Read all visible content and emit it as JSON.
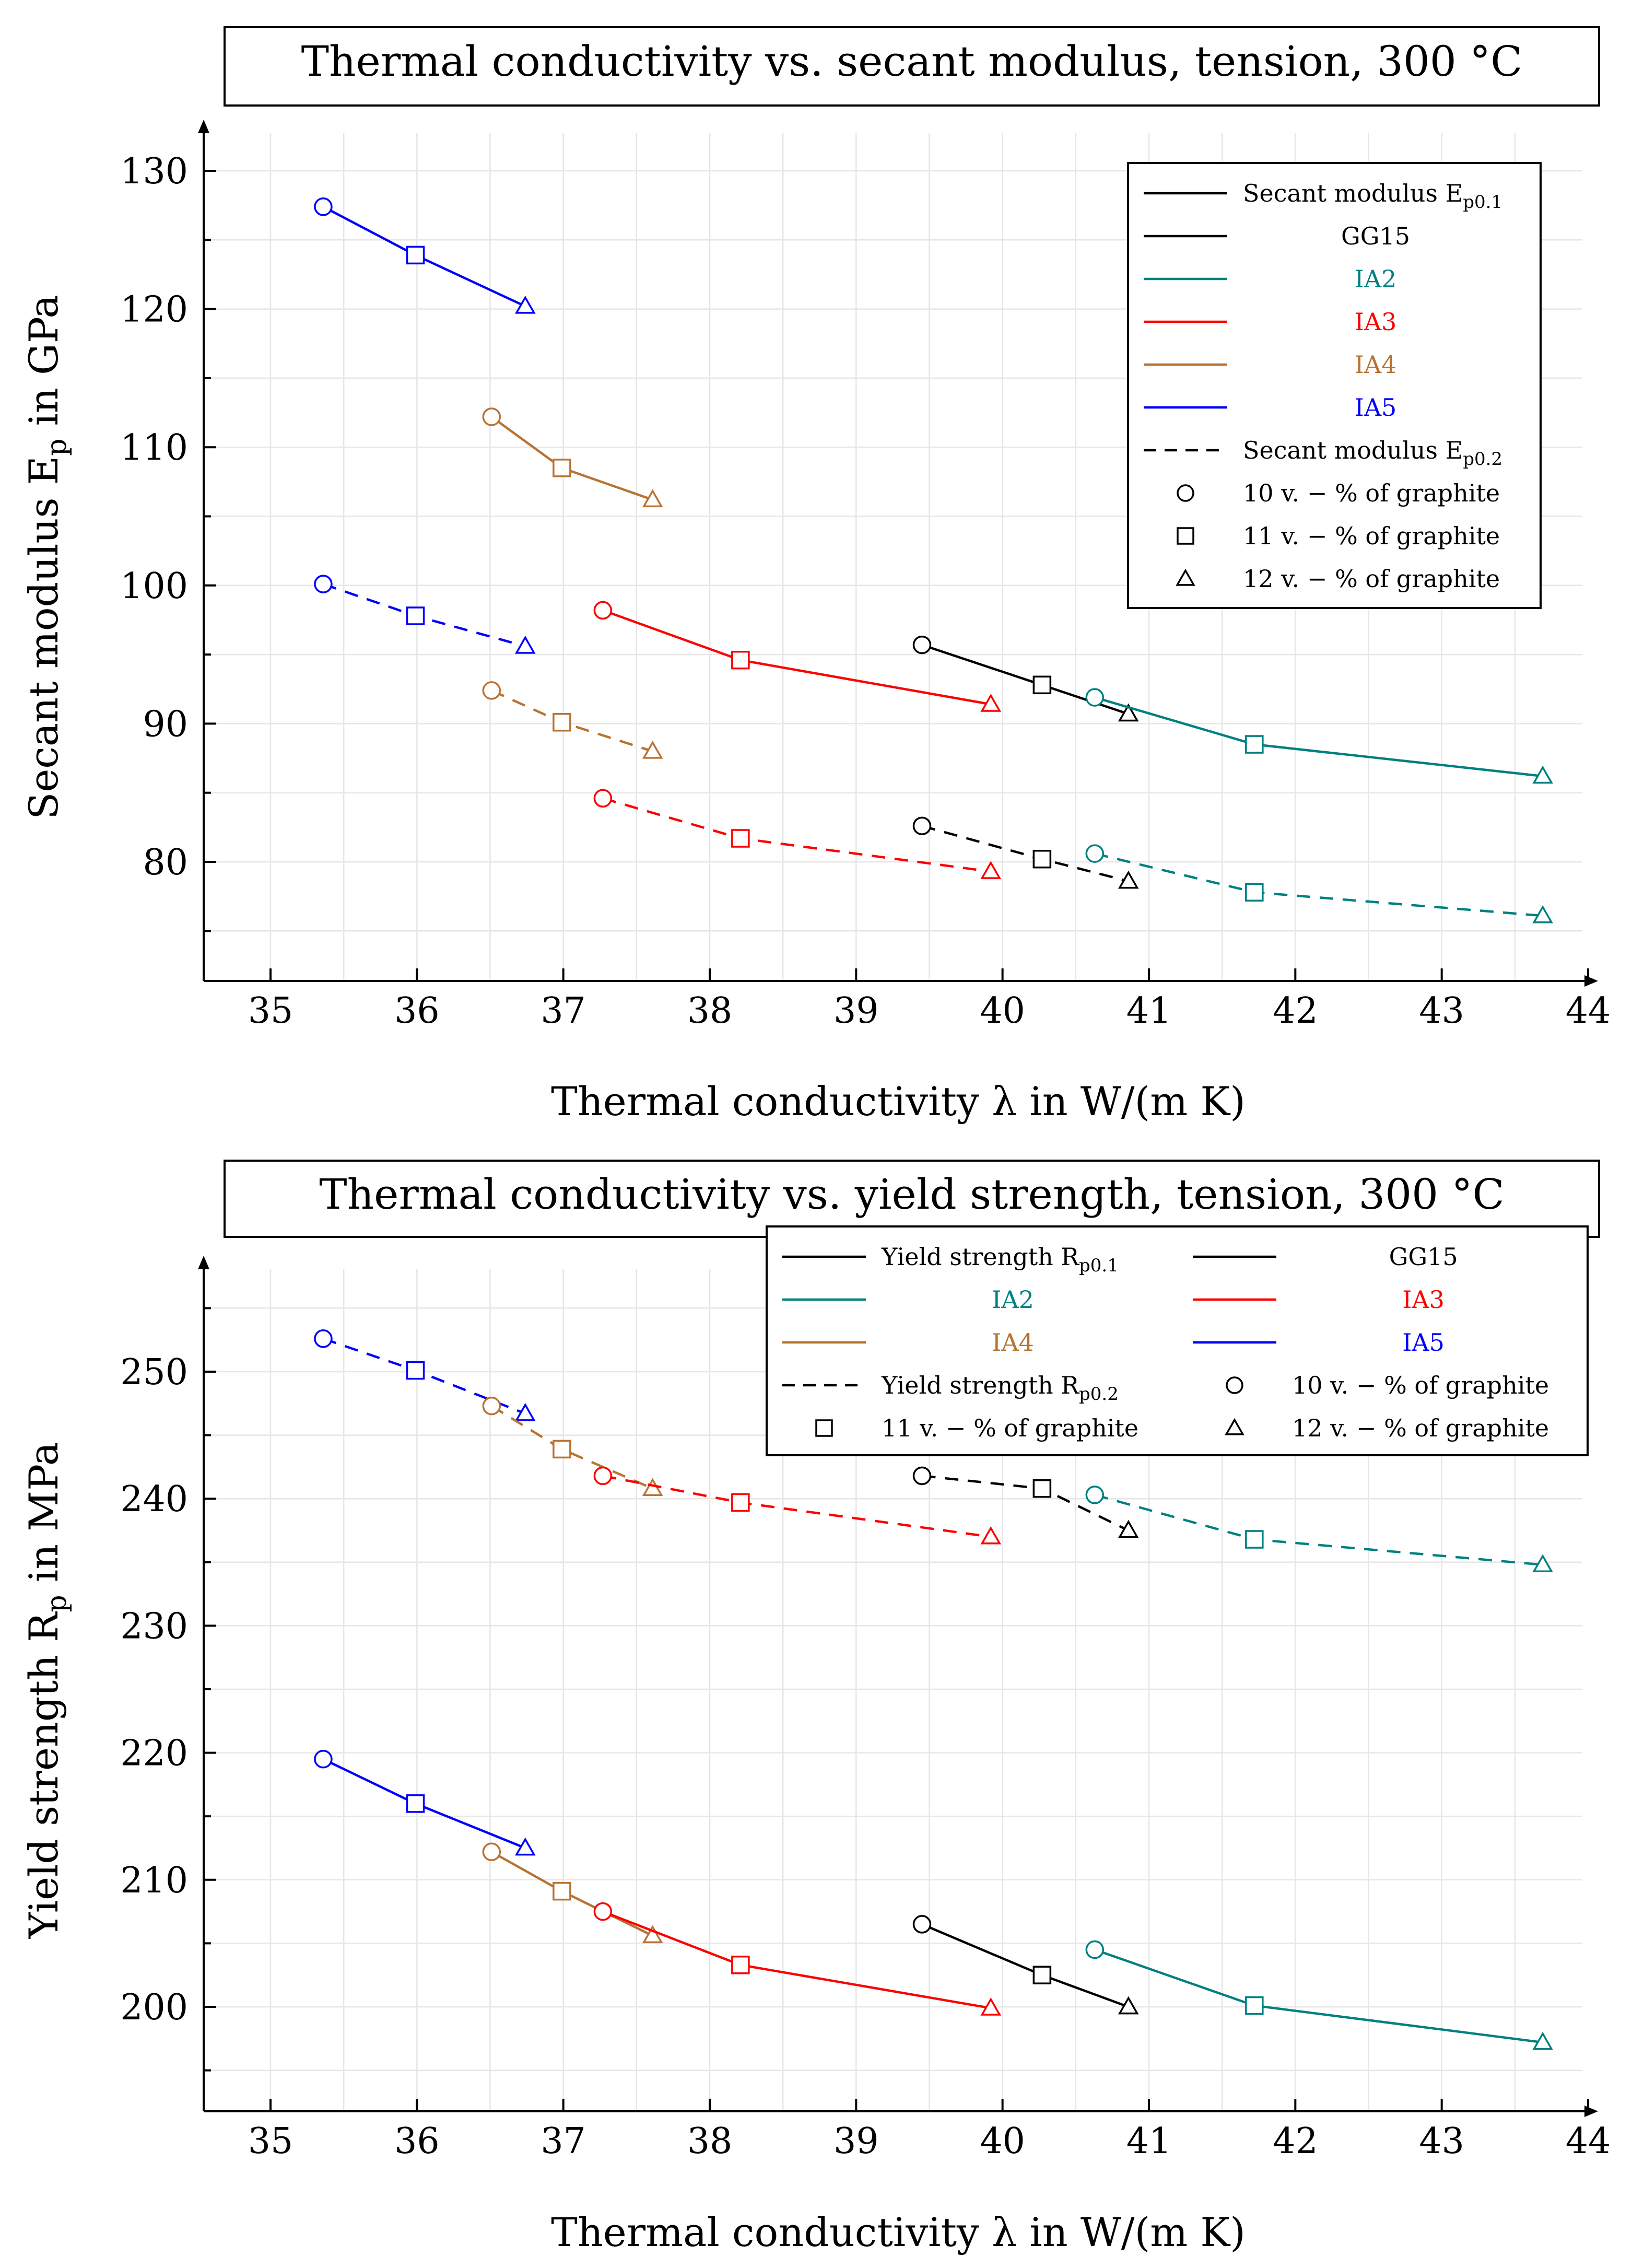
{
  "colors": {
    "GG15": "#000000",
    "IA2": "#008080",
    "IA3": "#ff0000",
    "IA4": "#b87333",
    "IA5": "#0000ff",
    "grid": "#e6e6e6",
    "axis": "#000000"
  },
  "markers": [
    "circle",
    "square",
    "triangle"
  ],
  "chart_data": [
    {
      "type": "line",
      "title": "Thermal conductivity vs. secant modulus, tension, 300 °C",
      "xlabel": "Thermal conductivity λ in W/(m K)",
      "ylabel": "Secant modulus E",
      "ylabel_sub": "p",
      "ylabel_suffix": " in GPa",
      "xlim": [
        34.5,
        44.5
      ],
      "ylim": [
        71,
        131.5
      ],
      "xticks": [
        35,
        36,
        37,
        38,
        39,
        40,
        41,
        42,
        43,
        44
      ],
      "yticks": [
        80,
        90,
        100,
        110,
        120,
        130
      ],
      "legend_position": "top-right",
      "legend_columns": 1,
      "legend": [
        {
          "kind": "line",
          "style": "solid",
          "color": "GG15",
          "label": "Secant modulus E",
          "sub": "p0.1"
        },
        {
          "kind": "line",
          "style": "solid",
          "color": "GG15",
          "label": "GG15",
          "center": true
        },
        {
          "kind": "line",
          "style": "solid",
          "color": "IA2",
          "label": "IA2",
          "center": true
        },
        {
          "kind": "line",
          "style": "solid",
          "color": "IA3",
          "label": "IA3",
          "center": true
        },
        {
          "kind": "line",
          "style": "solid",
          "color": "IA4",
          "label": "IA4",
          "center": true
        },
        {
          "kind": "line",
          "style": "solid",
          "color": "IA5",
          "label": "IA5",
          "center": true
        },
        {
          "kind": "line",
          "style": "dashed",
          "color": "GG15",
          "label": "Secant modulus E",
          "sub": "p0.2"
        },
        {
          "kind": "marker",
          "marker": "circle",
          "label": "10 v. − % of graphite"
        },
        {
          "kind": "marker",
          "marker": "square",
          "label": "11 v. − % of graphite"
        },
        {
          "kind": "marker",
          "marker": "triangle",
          "label": "12 v. − % of graphite"
        }
      ],
      "series": [
        {
          "name": "IA5 Ep0.1",
          "material": "IA5",
          "style": "solid",
          "x": [
            35.36,
            35.99,
            36.74
          ],
          "y": [
            127.4,
            123.9,
            120.2
          ]
        },
        {
          "name": "IA4 Ep0.1",
          "material": "IA4",
          "style": "solid",
          "x": [
            36.51,
            36.99,
            37.61
          ],
          "y": [
            112.2,
            108.5,
            106.2
          ]
        },
        {
          "name": "IA3 Ep0.1",
          "material": "IA3",
          "style": "solid",
          "x": [
            37.27,
            38.21,
            39.92
          ],
          "y": [
            98.2,
            94.6,
            91.4
          ]
        },
        {
          "name": "GG15 Ep0.1",
          "material": "GG15",
          "style": "solid",
          "x": [
            39.45,
            40.27,
            40.86
          ],
          "y": [
            95.7,
            92.8,
            90.7
          ]
        },
        {
          "name": "IA2 Ep0.1",
          "material": "IA2",
          "style": "solid",
          "x": [
            40.63,
            41.72,
            43.69
          ],
          "y": [
            91.9,
            88.5,
            86.2
          ]
        },
        {
          "name": "IA5 Ep0.2",
          "material": "IA5",
          "style": "dashed",
          "x": [
            35.36,
            35.99,
            36.74
          ],
          "y": [
            100.1,
            97.8,
            95.6
          ]
        },
        {
          "name": "IA4 Ep0.2",
          "material": "IA4",
          "style": "dashed",
          "x": [
            36.51,
            36.99,
            37.61
          ],
          "y": [
            92.4,
            90.1,
            88.0
          ]
        },
        {
          "name": "IA3 Ep0.2",
          "material": "IA3",
          "style": "dashed",
          "x": [
            37.27,
            38.21,
            39.92
          ],
          "y": [
            84.6,
            81.7,
            79.3
          ]
        },
        {
          "name": "GG15 Ep0.2",
          "material": "GG15",
          "style": "dashed",
          "x": [
            39.45,
            40.27,
            40.86
          ],
          "y": [
            82.6,
            80.2,
            78.6
          ]
        },
        {
          "name": "IA2 Ep0.2",
          "material": "IA2",
          "style": "dashed",
          "x": [
            40.63,
            41.72,
            43.69
          ],
          "y": [
            80.6,
            77.8,
            76.1
          ]
        }
      ]
    },
    {
      "type": "line",
      "title": "Thermal conductivity vs. yield strength, tension, 300 °C",
      "xlabel": "Thermal conductivity λ in W/(m K)",
      "ylabel": "Yield strength R",
      "ylabel_sub": "p",
      "ylabel_suffix": " in MPa",
      "xlim": [
        34.5,
        44.5
      ],
      "ylim": [
        191,
        258
      ],
      "xticks": [
        35,
        36,
        37,
        38,
        39,
        40,
        41,
        42,
        43,
        44
      ],
      "yticks": [
        200,
        210,
        220,
        230,
        240,
        250
      ],
      "legend_position": "top-right",
      "legend_columns": 2,
      "legend": [
        {
          "kind": "line",
          "style": "solid",
          "color": "GG15",
          "label": "Yield strength R",
          "sub": "p0.1"
        },
        {
          "kind": "line",
          "style": "solid",
          "color": "GG15",
          "label": "GG15",
          "center": true
        },
        {
          "kind": "line",
          "style": "solid",
          "color": "IA2",
          "label": "IA2",
          "center": true
        },
        {
          "kind": "line",
          "style": "solid",
          "color": "IA3",
          "label": "IA3",
          "center": true
        },
        {
          "kind": "line",
          "style": "solid",
          "color": "IA4",
          "label": "IA4",
          "center": true
        },
        {
          "kind": "line",
          "style": "solid",
          "color": "IA5",
          "label": "IA5",
          "center": true
        },
        {
          "kind": "line",
          "style": "dashed",
          "color": "GG15",
          "label": "Yield strength R",
          "sub": "p0.2"
        },
        {
          "kind": "marker",
          "marker": "circle",
          "label": "10 v. − % of graphite"
        },
        {
          "kind": "marker",
          "marker": "square",
          "label": "11 v. − % of graphite"
        },
        {
          "kind": "marker",
          "marker": "triangle",
          "label": "12 v. − % of graphite"
        }
      ],
      "series": [
        {
          "name": "IA5 Rp0.1",
          "material": "IA5",
          "style": "solid",
          "x": [
            35.36,
            35.99,
            36.74
          ],
          "y": [
            219.5,
            216.0,
            212.5
          ]
        },
        {
          "name": "IA4 Rp0.1",
          "material": "IA4",
          "style": "solid",
          "x": [
            36.51,
            36.99,
            37.61
          ],
          "y": [
            212.2,
            209.1,
            205.6
          ]
        },
        {
          "name": "IA3 Rp0.1",
          "material": "IA3",
          "style": "solid",
          "x": [
            37.27,
            38.21,
            39.92
          ],
          "y": [
            207.5,
            203.3,
            199.9
          ]
        },
        {
          "name": "GG15 Rp0.1",
          "material": "GG15",
          "style": "solid",
          "x": [
            39.45,
            40.27,
            40.86
          ],
          "y": [
            206.5,
            202.5,
            200.0
          ]
        },
        {
          "name": "IA2 Rp0.1",
          "material": "IA2",
          "style": "solid",
          "x": [
            40.63,
            41.72,
            43.69
          ],
          "y": [
            204.5,
            200.1,
            197.2
          ]
        },
        {
          "name": "IA5 Rp0.2",
          "material": "IA5",
          "style": "dashed",
          "x": [
            35.36,
            35.99,
            36.74
          ],
          "y": [
            252.6,
            250.1,
            246.7
          ]
        },
        {
          "name": "IA4 Rp0.2",
          "material": "IA4",
          "style": "dashed",
          "x": [
            36.51,
            36.99,
            37.61
          ],
          "y": [
            247.3,
            243.9,
            240.8
          ]
        },
        {
          "name": "IA3 Rp0.2",
          "material": "IA3",
          "style": "dashed",
          "x": [
            37.27,
            38.21,
            39.92
          ],
          "y": [
            241.8,
            239.7,
            237.0
          ]
        },
        {
          "name": "GG15 Rp0.2",
          "material": "GG15",
          "style": "dashed",
          "x": [
            39.45,
            40.27,
            40.86
          ],
          "y": [
            241.8,
            240.8,
            237.5
          ]
        },
        {
          "name": "IA2 Rp0.2",
          "material": "IA2",
          "style": "dashed",
          "x": [
            40.63,
            41.72,
            43.69
          ],
          "y": [
            240.3,
            236.8,
            234.8
          ]
        }
      ]
    }
  ]
}
